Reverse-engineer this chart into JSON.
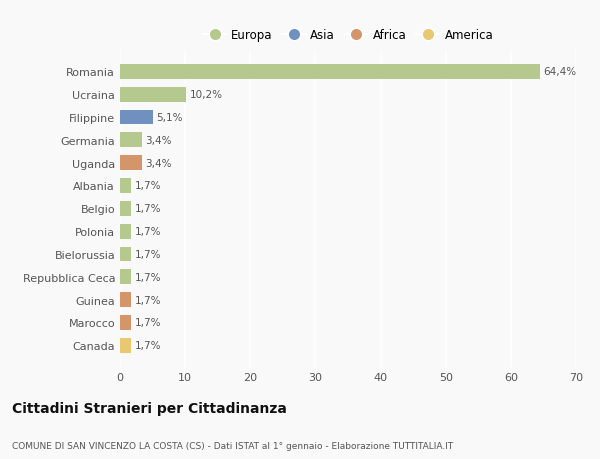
{
  "countries": [
    "Romania",
    "Ucraina",
    "Filippine",
    "Germania",
    "Uganda",
    "Albania",
    "Belgio",
    "Polonia",
    "Bielorussia",
    "Repubblica Ceca",
    "Guinea",
    "Marocco",
    "Canada"
  ],
  "values": [
    64.4,
    10.2,
    5.1,
    3.4,
    3.4,
    1.7,
    1.7,
    1.7,
    1.7,
    1.7,
    1.7,
    1.7,
    1.7
  ],
  "labels": [
    "64,4%",
    "10,2%",
    "5,1%",
    "3,4%",
    "3,4%",
    "1,7%",
    "1,7%",
    "1,7%",
    "1,7%",
    "1,7%",
    "1,7%",
    "1,7%",
    "1,7%"
  ],
  "continents": [
    "Europa",
    "Europa",
    "Asia",
    "Europa",
    "Africa",
    "Europa",
    "Europa",
    "Europa",
    "Europa",
    "Europa",
    "Africa",
    "Africa",
    "America"
  ],
  "colors": {
    "Europa": "#b5c98e",
    "Asia": "#7090c0",
    "Africa": "#d4956a",
    "America": "#e8c870"
  },
  "legend_order": [
    "Europa",
    "Asia",
    "Africa",
    "America"
  ],
  "xlim": [
    0,
    70
  ],
  "xticks": [
    0,
    10,
    20,
    30,
    40,
    50,
    60,
    70
  ],
  "title": "Cittadini Stranieri per Cittadinanza",
  "subtitle": "COMUNE DI SAN VINCENZO LA COSTA (CS) - Dati ISTAT al 1° gennaio - Elaborazione TUTTITALIA.IT",
  "background_color": "#f9f9f9",
  "grid_color": "#ffffff",
  "bar_height": 0.65
}
